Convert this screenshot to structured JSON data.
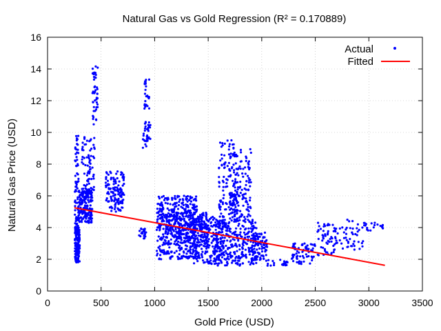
{
  "chart_data": {
    "type": "scatter",
    "title": "Natural Gas vs Gold Regression (R² = 0.170889)",
    "xlabel": "Gold Price (USD)",
    "ylabel": "Natural Gas Price (USD)",
    "xlim": [
      0,
      3500
    ],
    "ylim": [
      0,
      16
    ],
    "xticks": [
      0,
      500,
      1000,
      1500,
      2000,
      2500,
      3000,
      3500
    ],
    "yticks": [
      0,
      2,
      4,
      6,
      8,
      10,
      12,
      14,
      16
    ],
    "grid": true,
    "legend_position": "top-right",
    "colors": {
      "actual": "#0000ff",
      "fitted": "#ff0000"
    },
    "series": [
      {
        "name": "Actual",
        "style": "points",
        "clusters": [
          {
            "x": [
              255,
              300
            ],
            "y": [
              1.8,
              4.0
            ],
            "n": 180
          },
          {
            "x": [
              255,
              290
            ],
            "y": [
              4.0,
              10.0
            ],
            "n": 70
          },
          {
            "x": [
              290,
              420
            ],
            "y": [
              4.3,
              6.5
            ],
            "n": 180
          },
          {
            "x": [
              320,
              440
            ],
            "y": [
              6.0,
              9.8
            ],
            "n": 70
          },
          {
            "x": [
              420,
              470
            ],
            "y": [
              10.5,
              14.3
            ],
            "n": 45
          },
          {
            "x": [
              540,
              720
            ],
            "y": [
              5.6,
              7.6
            ],
            "n": 90
          },
          {
            "x": [
              580,
              700
            ],
            "y": [
              5.0,
              6.5
            ],
            "n": 50
          },
          {
            "x": [
              850,
              920
            ],
            "y": [
              3.3,
              4.0
            ],
            "n": 25
          },
          {
            "x": [
              890,
              960
            ],
            "y": [
              9.0,
              10.8
            ],
            "n": 35
          },
          {
            "x": [
              900,
              950
            ],
            "y": [
              11.5,
              13.6
            ],
            "n": 25
          },
          {
            "x": [
              1020,
              1400
            ],
            "y": [
              2.0,
              6.0
            ],
            "n": 420
          },
          {
            "x": [
              1100,
              1500
            ],
            "y": [
              2.8,
              5.0
            ],
            "n": 250
          },
          {
            "x": [
              1350,
              1650
            ],
            "y": [
              1.7,
              4.7
            ],
            "n": 200
          },
          {
            "x": [
              1550,
              1950
            ],
            "y": [
              1.6,
              4.5
            ],
            "n": 320
          },
          {
            "x": [
              1600,
              1760
            ],
            "y": [
              4.5,
              9.5
            ],
            "n": 110
          },
          {
            "x": [
              1740,
              1900
            ],
            "y": [
              4.5,
              9.0
            ],
            "n": 110
          },
          {
            "x": [
              1700,
              1780
            ],
            "y": [
              4.8,
              6.2
            ],
            "n": 40
          },
          {
            "x": [
              1900,
              2050
            ],
            "y": [
              1.9,
              3.7
            ],
            "n": 90
          },
          {
            "x": [
              2050,
              2250
            ],
            "y": [
              1.6,
              2.0
            ],
            "n": 20
          },
          {
            "x": [
              2280,
              2500
            ],
            "y": [
              1.7,
              3.0
            ],
            "n": 70
          },
          {
            "x": [
              2520,
              2700
            ],
            "y": [
              2.2,
              4.3
            ],
            "n": 60
          },
          {
            "x": [
              2700,
              2950
            ],
            "y": [
              2.6,
              4.5
            ],
            "n": 45
          },
          {
            "x": [
              2950,
              3150
            ],
            "y": [
              3.8,
              4.3
            ],
            "n": 20
          }
        ]
      },
      {
        "name": "Fitted",
        "style": "line",
        "x": [
          250,
          3150
        ],
        "y": [
          5.25,
          1.62
        ]
      }
    ]
  }
}
